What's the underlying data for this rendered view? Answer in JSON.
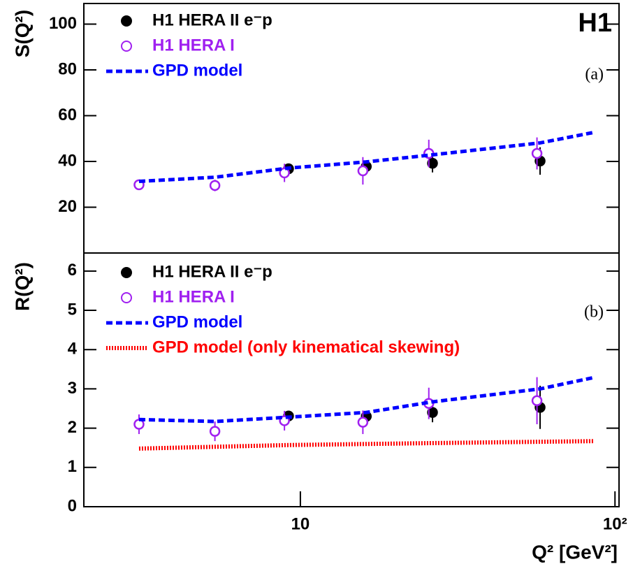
{
  "chart_data": [
    {
      "type": "scatter",
      "label": "H1",
      "panel_label": "(a)",
      "y_label": "S(Q²)",
      "xlog": true,
      "xlim": [
        2.05,
        103
      ],
      "ylim": [
        0,
        109
      ],
      "yticks": [
        20,
        40,
        60,
        80,
        100
      ],
      "series": [
        {
          "name": "H1 HERA II e⁻p",
          "color": "#000000",
          "marker": "filled",
          "x": [
            9.17,
            16.2,
            26.3,
            57.8
          ],
          "values": [
            36.8,
            37.8,
            39.2,
            40.2
          ],
          "errors": [
            2,
            2,
            4,
            6
          ]
        },
        {
          "name": "H1 HERA I",
          "color": "#a020f0",
          "marker": "open",
          "x": [
            3.07,
            5.35,
            8.9,
            15.8,
            25.6,
            56.5
          ],
          "values": [
            29.8,
            29.5,
            35,
            35.9,
            43.5,
            43.5
          ],
          "errors": [
            2,
            2.5,
            4,
            6,
            6,
            7
          ]
        },
        {
          "name": "GPD model",
          "color": "#0000ff",
          "style": "dashed",
          "x": [
            3.07,
            5.35,
            9.17,
            16.2,
            26.3,
            57.8,
            85.8
          ],
          "values": [
            31.3,
            33.1,
            37.1,
            39.8,
            42.9,
            48.1,
            52.7
          ]
        }
      ]
    },
    {
      "type": "scatter",
      "panel_label": "(b)",
      "y_label": "R(Q²)",
      "x_label": "Q² [GeV²]",
      "xlog": true,
      "xlim": [
        2.05,
        103
      ],
      "ylim": [
        0,
        6.46
      ],
      "yticks": [
        0,
        1,
        2,
        3,
        4,
        5,
        6
      ],
      "xticks": [
        10,
        {
          "value": 100,
          "label": "10²"
        }
      ],
      "series": [
        {
          "name": "H1 HERA II e⁻p",
          "color": "#000000",
          "marker": "filled",
          "x": [
            9.17,
            16.2,
            26.3,
            57.8
          ],
          "values": [
            2.31,
            2.3,
            2.4,
            2.53
          ],
          "errors": [
            0.1,
            0.1,
            0.25,
            0.55
          ]
        },
        {
          "name": "H1 HERA I",
          "color": "#a020f0",
          "marker": "open",
          "x": [
            3.07,
            5.35,
            8.9,
            15.8,
            25.6,
            56.5
          ],
          "values": [
            2.1,
            1.92,
            2.19,
            2.15,
            2.63,
            2.7
          ],
          "errors": [
            0.25,
            0.25,
            0.25,
            0.3,
            0.4,
            0.6
          ]
        },
        {
          "name": "GPD model",
          "color": "#0000ff",
          "style": "dashed",
          "x": [
            3.07,
            5.35,
            9.17,
            16.2,
            26.3,
            57.8,
            85.8
          ],
          "values": [
            2.22,
            2.17,
            2.28,
            2.4,
            2.67,
            3.0,
            3.29
          ]
        },
        {
          "name": "GPD model (only kinematical skewing)",
          "color": "#ff0000",
          "style": "dotted",
          "x": [
            3.07,
            9.17,
            26.3,
            85.8
          ],
          "values": [
            1.48,
            1.57,
            1.62,
            1.67
          ]
        }
      ]
    }
  ]
}
